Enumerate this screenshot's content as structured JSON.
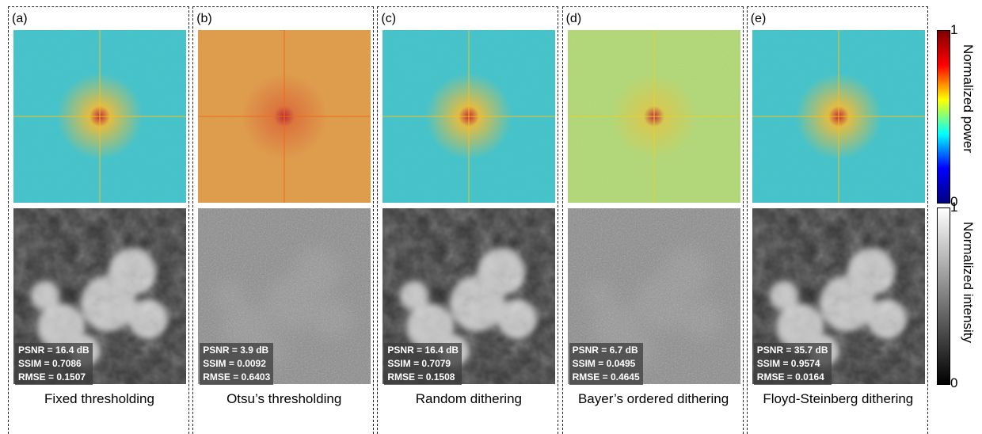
{
  "panels": [
    {
      "label": "(a)",
      "caption": "Fixed thresholding",
      "metrics": [
        "PSNR = 16.4 dB",
        "SSIM = 0.7086",
        "RMSE = 0.1507"
      ]
    },
    {
      "label": "(b)",
      "caption": "Otsu’s thresholding",
      "metrics": [
        "PSNR = 3.9 dB",
        "SSIM = 0.0092",
        "RMSE = 0.6403"
      ]
    },
    {
      "label": "(c)",
      "caption": "Random dithering",
      "metrics": [
        "PSNR = 16.4 dB",
        "SSIM = 0.7079",
        "RMSE = 0.1508"
      ]
    },
    {
      "label": "(d)",
      "caption": "Bayer’s ordered dithering",
      "metrics": [
        "PSNR = 6.7 dB",
        "SSIM = 0.0495",
        "RMSE = 0.4645"
      ]
    },
    {
      "label": "(e)",
      "caption": "Floyd-Steinberg dithering",
      "metrics": [
        "PSNR = 35.7 dB",
        "SSIM = 0.9574",
        "RMSE = 0.0164"
      ]
    }
  ],
  "colorbars": [
    {
      "label": "Normalized power",
      "max": 1,
      "min": 0
    },
    {
      "label": "Normalized intensity",
      "max": 1,
      "min": 0
    }
  ]
}
